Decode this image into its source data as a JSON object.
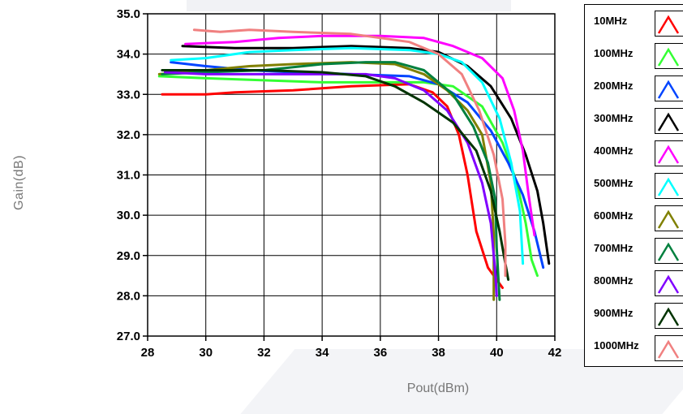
{
  "chart_data": {
    "type": "line",
    "xlabel": "Pout(dBm)",
    "ylabel": "Gain(dB)",
    "xlim": [
      28,
      42
    ],
    "ylim": [
      27,
      35
    ],
    "x_ticks": [
      "28",
      "30",
      "32",
      "34",
      "36",
      "38",
      "40",
      "42"
    ],
    "y_ticks": [
      "27.0",
      "28.0",
      "29.0",
      "30.0",
      "31.0",
      "32.0",
      "33.0",
      "34.0",
      "35.0"
    ],
    "grid": true,
    "legend_position": "right",
    "series": [
      {
        "name": "10MHz",
        "color": "#ff0000",
        "points": [
          [
            28.5,
            33.0
          ],
          [
            30.0,
            33.0
          ],
          [
            31.0,
            33.05
          ],
          [
            33.0,
            33.1
          ],
          [
            35.0,
            33.2
          ],
          [
            37.0,
            33.25
          ],
          [
            37.8,
            33.05
          ],
          [
            38.3,
            32.7
          ],
          [
            38.7,
            32.0
          ],
          [
            39.0,
            31.0
          ],
          [
            39.3,
            29.6
          ],
          [
            39.7,
            28.7
          ],
          [
            40.2,
            28.2
          ]
        ]
      },
      {
        "name": "100MHz",
        "color": "#33ff33",
        "points": [
          [
            28.4,
            33.45
          ],
          [
            30.0,
            33.4
          ],
          [
            32.0,
            33.35
          ],
          [
            34.0,
            33.3
          ],
          [
            36.0,
            33.3
          ],
          [
            37.5,
            33.3
          ],
          [
            38.5,
            33.2
          ],
          [
            39.5,
            32.7
          ],
          [
            40.2,
            31.8
          ],
          [
            40.7,
            30.8
          ],
          [
            41.0,
            29.8
          ],
          [
            41.2,
            28.9
          ],
          [
            41.4,
            28.5
          ]
        ]
      },
      {
        "name": "200MHz",
        "color": "#0044ff",
        "points": [
          [
            28.8,
            33.8
          ],
          [
            30.0,
            33.7
          ],
          [
            31.5,
            33.6
          ],
          [
            33.0,
            33.55
          ],
          [
            35.0,
            33.5
          ],
          [
            37.0,
            33.45
          ],
          [
            38.0,
            33.25
          ],
          [
            39.0,
            32.8
          ],
          [
            39.8,
            32.1
          ],
          [
            40.4,
            31.3
          ],
          [
            40.9,
            30.5
          ],
          [
            41.3,
            29.6
          ],
          [
            41.6,
            28.7
          ]
        ]
      },
      {
        "name": "300MHz",
        "color": "#000000",
        "points": [
          [
            29.2,
            34.2
          ],
          [
            31.0,
            34.15
          ],
          [
            33.0,
            34.15
          ],
          [
            35.0,
            34.2
          ],
          [
            37.0,
            34.15
          ],
          [
            38.0,
            34.05
          ],
          [
            39.0,
            33.7
          ],
          [
            39.8,
            33.2
          ],
          [
            40.5,
            32.4
          ],
          [
            41.0,
            31.5
          ],
          [
            41.4,
            30.6
          ],
          [
            41.6,
            29.8
          ],
          [
            41.8,
            28.8
          ]
        ]
      },
      {
        "name": "400MHz",
        "color": "#ff00ff",
        "points": [
          [
            29.3,
            34.25
          ],
          [
            31.0,
            34.3
          ],
          [
            32.5,
            34.4
          ],
          [
            34.0,
            34.45
          ],
          [
            36.0,
            34.45
          ],
          [
            37.5,
            34.4
          ],
          [
            38.5,
            34.2
          ],
          [
            39.5,
            33.9
          ],
          [
            40.2,
            33.4
          ],
          [
            40.6,
            32.6
          ],
          [
            40.9,
            31.6
          ],
          [
            41.1,
            30.5
          ],
          [
            41.3,
            29.5
          ]
        ]
      },
      {
        "name": "500MHz",
        "color": "#00ffff",
        "points": [
          [
            28.8,
            33.85
          ],
          [
            30.0,
            33.9
          ],
          [
            31.5,
            34.05
          ],
          [
            33.0,
            34.1
          ],
          [
            35.0,
            34.15
          ],
          [
            37.0,
            34.1
          ],
          [
            38.0,
            34.0
          ],
          [
            38.8,
            33.8
          ],
          [
            39.5,
            33.3
          ],
          [
            40.1,
            32.4
          ],
          [
            40.5,
            31.3
          ],
          [
            40.8,
            30.1
          ],
          [
            40.9,
            28.8
          ]
        ]
      },
      {
        "name": "600MHz",
        "color": "#808000",
        "points": [
          [
            28.4,
            33.5
          ],
          [
            30.0,
            33.6
          ],
          [
            31.5,
            33.7
          ],
          [
            33.0,
            33.75
          ],
          [
            35.0,
            33.8
          ],
          [
            36.5,
            33.75
          ],
          [
            37.5,
            33.5
          ],
          [
            38.3,
            33.1
          ],
          [
            39.0,
            32.6
          ],
          [
            39.5,
            32.0
          ],
          [
            39.8,
            30.8
          ],
          [
            39.9,
            29.5
          ],
          [
            39.9,
            27.9
          ]
        ]
      },
      {
        "name": "700MHz",
        "color": "#00803e",
        "points": [
          [
            28.5,
            33.5
          ],
          [
            30.0,
            33.55
          ],
          [
            32.0,
            33.6
          ],
          [
            34.0,
            33.75
          ],
          [
            35.5,
            33.8
          ],
          [
            36.5,
            33.8
          ],
          [
            37.5,
            33.6
          ],
          [
            38.5,
            33.0
          ],
          [
            39.2,
            32.2
          ],
          [
            39.7,
            31.3
          ],
          [
            39.95,
            30.4
          ],
          [
            40.0,
            29.2
          ],
          [
            40.1,
            27.9
          ]
        ]
      },
      {
        "name": "800MHz",
        "color": "#8000ff",
        "points": [
          [
            28.6,
            33.55
          ],
          [
            30.0,
            33.5
          ],
          [
            32.0,
            33.5
          ],
          [
            34.0,
            33.5
          ],
          [
            35.5,
            33.5
          ],
          [
            36.5,
            33.4
          ],
          [
            37.5,
            33.1
          ],
          [
            38.3,
            32.6
          ],
          [
            39.0,
            31.8
          ],
          [
            39.5,
            30.8
          ],
          [
            39.8,
            29.8
          ],
          [
            39.95,
            28.6
          ],
          [
            40.0,
            28.0
          ]
        ]
      },
      {
        "name": "900MHz",
        "color": "#003300",
        "points": [
          [
            28.5,
            33.6
          ],
          [
            30.0,
            33.6
          ],
          [
            32.0,
            33.6
          ],
          [
            34.0,
            33.55
          ],
          [
            35.5,
            33.45
          ],
          [
            36.5,
            33.2
          ],
          [
            37.5,
            32.8
          ],
          [
            38.5,
            32.3
          ],
          [
            39.3,
            31.6
          ],
          [
            39.8,
            30.6
          ],
          [
            40.1,
            29.6
          ],
          [
            40.3,
            28.8
          ],
          [
            40.4,
            28.4
          ]
        ]
      },
      {
        "name": "1000MHz",
        "color": "#f08080",
        "points": [
          [
            29.6,
            34.6
          ],
          [
            30.5,
            34.55
          ],
          [
            31.5,
            34.6
          ],
          [
            33.0,
            34.55
          ],
          [
            35.0,
            34.5
          ],
          [
            37.0,
            34.3
          ],
          [
            38.0,
            34.0
          ],
          [
            38.8,
            33.5
          ],
          [
            39.4,
            32.6
          ],
          [
            39.9,
            31.5
          ],
          [
            40.2,
            30.4
          ],
          [
            40.3,
            29.3
          ],
          [
            40.3,
            28.5
          ]
        ]
      }
    ]
  }
}
